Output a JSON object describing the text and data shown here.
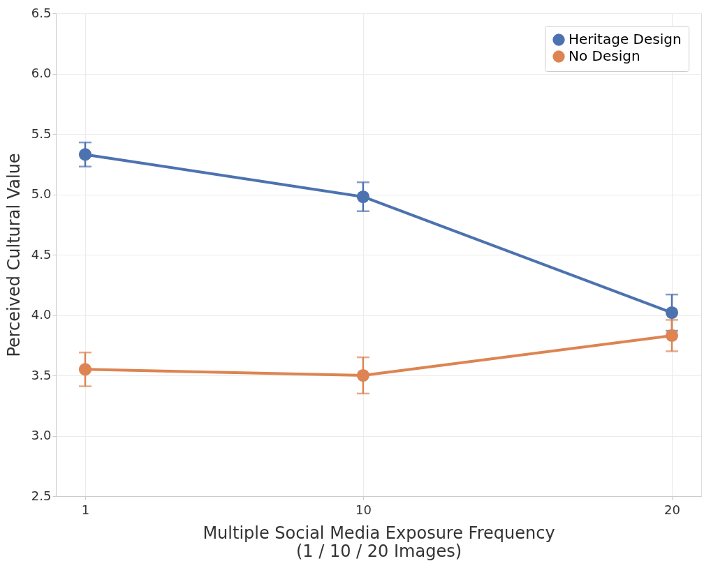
{
  "chart_data": {
    "type": "line",
    "xlabel": "Multiple Social Media Exposure Frequency\n(1 / 10 / 20 Images)",
    "ylabel": "Perceived Cultural Value",
    "x": [
      1,
      10,
      20
    ],
    "series": [
      {
        "name": "Heritage Design",
        "color": "#4c72b0",
        "values": [
          5.33,
          4.98,
          4.02
        ],
        "errors": [
          0.1,
          0.12,
          0.15
        ]
      },
      {
        "name": "No Design",
        "color": "#dd8452",
        "values": [
          3.55,
          3.5,
          3.83
        ],
        "errors": [
          0.14,
          0.15,
          0.13
        ]
      }
    ],
    "xlim": [
      0.05,
      20.95
    ],
    "xticks": [
      1,
      10,
      20
    ],
    "ylim": [
      2.5,
      6.5
    ],
    "yticks": [
      2.5,
      {
        "value": 3,
        "label": "3.0"
      },
      3.5,
      {
        "value": 4,
        "label": "4.0"
      },
      4.5,
      {
        "value": 5,
        "label": "5.0"
      },
      5.5,
      {
        "value": 6,
        "label": "6.0"
      },
      6.5
    ],
    "grid": true,
    "legend": "top right",
    "marker": "circle",
    "line_style": "solid"
  }
}
